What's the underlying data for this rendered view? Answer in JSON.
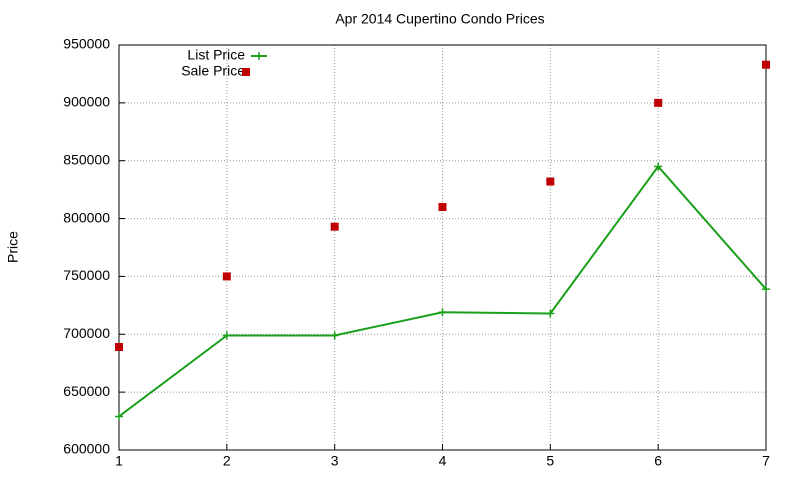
{
  "chart_data": {
    "type": "line",
    "title": "Apr 2014 Cupertino Condo Prices",
    "y_label": "Price",
    "x": [
      1,
      2,
      3,
      4,
      5,
      6,
      7
    ],
    "xlim": [
      1,
      7
    ],
    "xticks": [
      1,
      2,
      3,
      4,
      5,
      6,
      7
    ],
    "ylim": [
      600000,
      950000
    ],
    "yticks": [
      600000,
      650000,
      700000,
      750000,
      800000,
      850000,
      900000,
      950000
    ],
    "grid": true,
    "legend": "top-left",
    "series": [
      {
        "name": "List Price",
        "color": "#1aa01a",
        "style": "linespoints",
        "values": [
          629000,
          699000,
          699000,
          719000,
          718000,
          845000,
          739000
        ]
      },
      {
        "name": "Sale Price",
        "color": "#c00000",
        "style": "points",
        "values": [
          689000,
          750000,
          793000,
          810000,
          832000,
          900000,
          933000
        ]
      }
    ]
  }
}
